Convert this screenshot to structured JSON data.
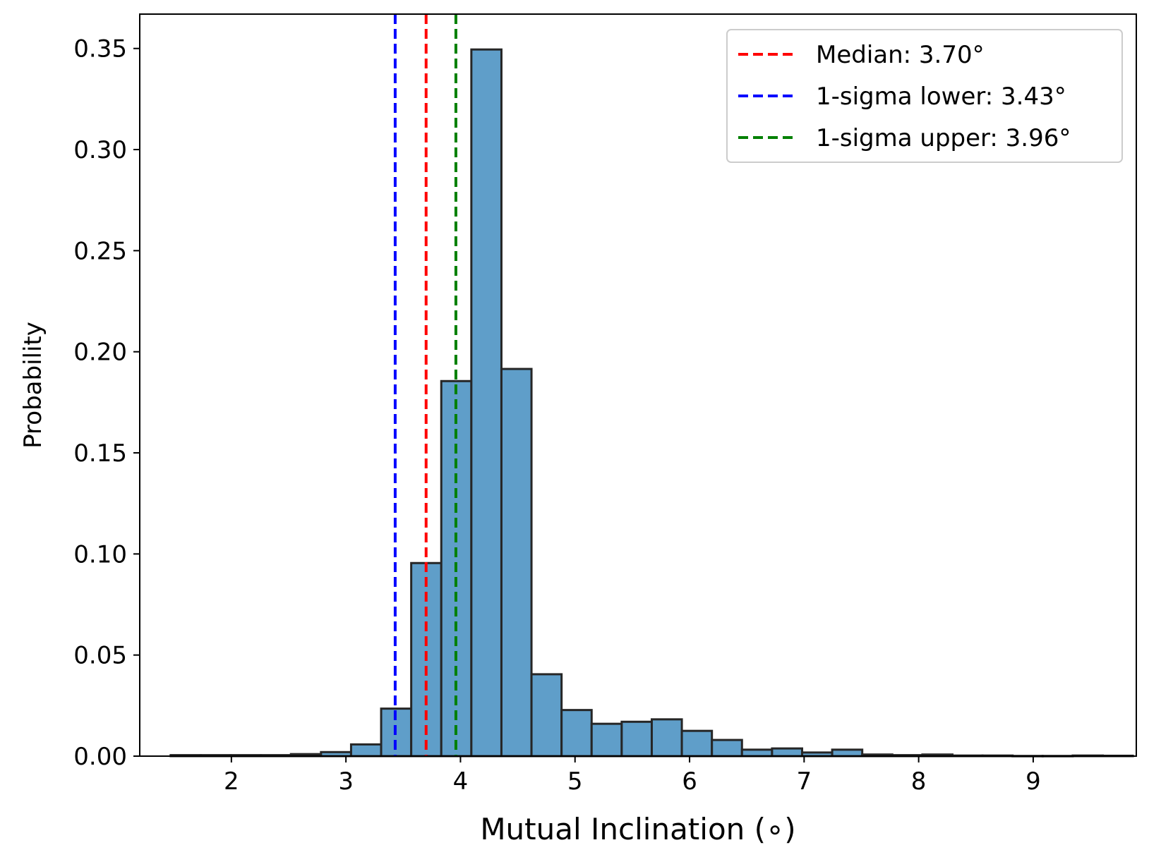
{
  "chart_data": {
    "type": "bar",
    "title": "",
    "xlabel": "Mutual Inclination (∘)",
    "ylabel": "Probability",
    "xlim": [
      1.2,
      9.9
    ],
    "ylim": [
      0,
      0.367
    ],
    "xticks": [
      2,
      3,
      4,
      5,
      6,
      7,
      8,
      9
    ],
    "xtick_labels": [
      "2",
      "3",
      "4",
      "5",
      "6",
      "7",
      "8",
      "9"
    ],
    "yticks": [
      0.0,
      0.05,
      0.1,
      0.15,
      0.2,
      0.25,
      0.3,
      0.35
    ],
    "ytick_labels": [
      "0.00",
      "0.05",
      "0.10",
      "0.15",
      "0.20",
      "0.25",
      "0.30",
      "0.35"
    ],
    "bar_color": "#5f9ec9",
    "bar_edge_color": "#262626",
    "bin_width": 0.2625,
    "bin_start": 1.47,
    "values": [
      0.0005,
      0.0005,
      0.0005,
      0.0005,
      0.001,
      0.002,
      0.0058,
      0.0235,
      0.0955,
      0.1855,
      0.3495,
      0.1915,
      0.0405,
      0.0228,
      0.016,
      0.017,
      0.0182,
      0.0125,
      0.008,
      0.0032,
      0.0038,
      0.0018,
      0.0032,
      0.0008,
      0.0005,
      0.0008,
      0.0003,
      0.0003,
      0.0001,
      0.0001,
      0.0003,
      0.0002
    ],
    "vlines": [
      {
        "name": "Median",
        "x": 3.7,
        "color": "#ff0000",
        "label": "Median: 3.70°"
      },
      {
        "name": "1-sigma lower",
        "x": 3.43,
        "color": "#0000ff",
        "label": "1-sigma lower: 3.43°"
      },
      {
        "name": "1-sigma upper",
        "x": 3.96,
        "color": "#008000",
        "label": "1-sigma upper: 3.96°"
      }
    ],
    "legend_position": "top-right"
  }
}
